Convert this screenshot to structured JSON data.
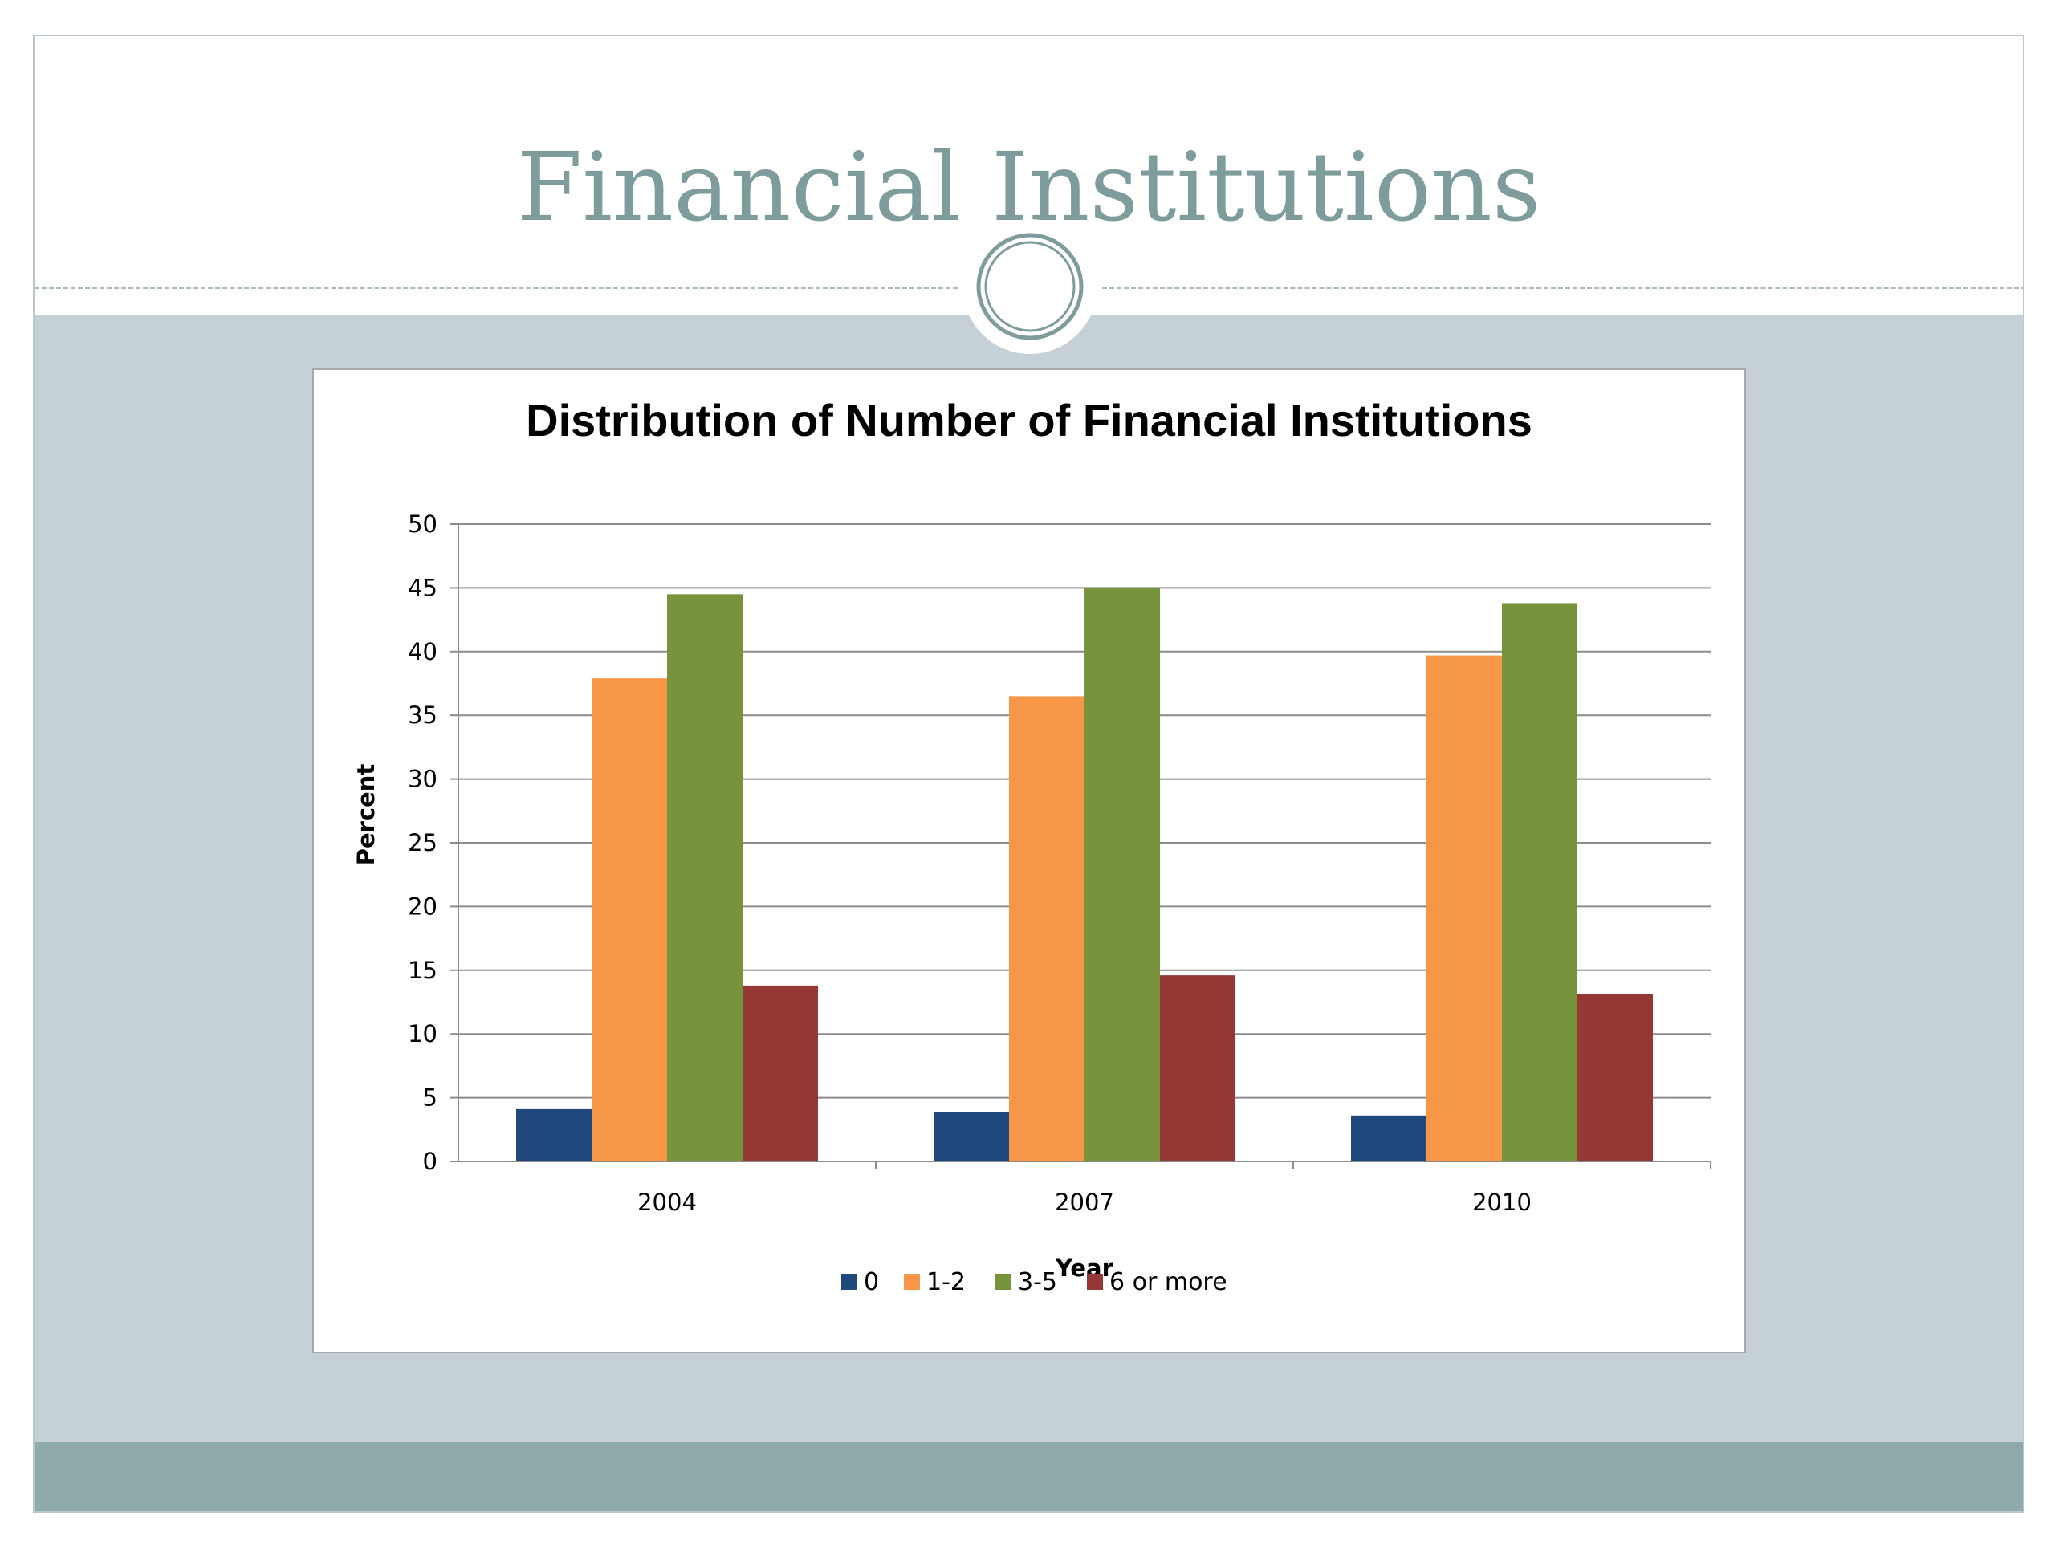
{
  "slide": {
    "title": "Financial Institutions",
    "colors": {
      "title": "#7f9c9d",
      "body_band": "#c5d1d6",
      "footer_band": "#8eaaab"
    }
  },
  "chart_data": {
    "type": "bar",
    "title": "Distribution of Number of Financial Institutions",
    "xlabel": "Year",
    "ylabel": "Percent",
    "categories": [
      "2004",
      "2007",
      "2010"
    ],
    "ylim": [
      0,
      50
    ],
    "yticks": [
      0,
      5,
      10,
      15,
      20,
      25,
      30,
      35,
      40,
      45,
      50
    ],
    "grid": true,
    "legend_position": "bottom",
    "series": [
      {
        "name": "0",
        "color": "#1f497d",
        "values": [
          4.1,
          3.9,
          3.6
        ]
      },
      {
        "name": "1-2",
        "color": "#f79646",
        "values": [
          37.9,
          36.5,
          39.7
        ]
      },
      {
        "name": "3-5",
        "color": "#77933c",
        "values": [
          44.5,
          45.0,
          43.8
        ]
      },
      {
        "name": "6 or more",
        "color": "#953735",
        "values": [
          13.8,
          14.6,
          13.1
        ]
      }
    ]
  }
}
